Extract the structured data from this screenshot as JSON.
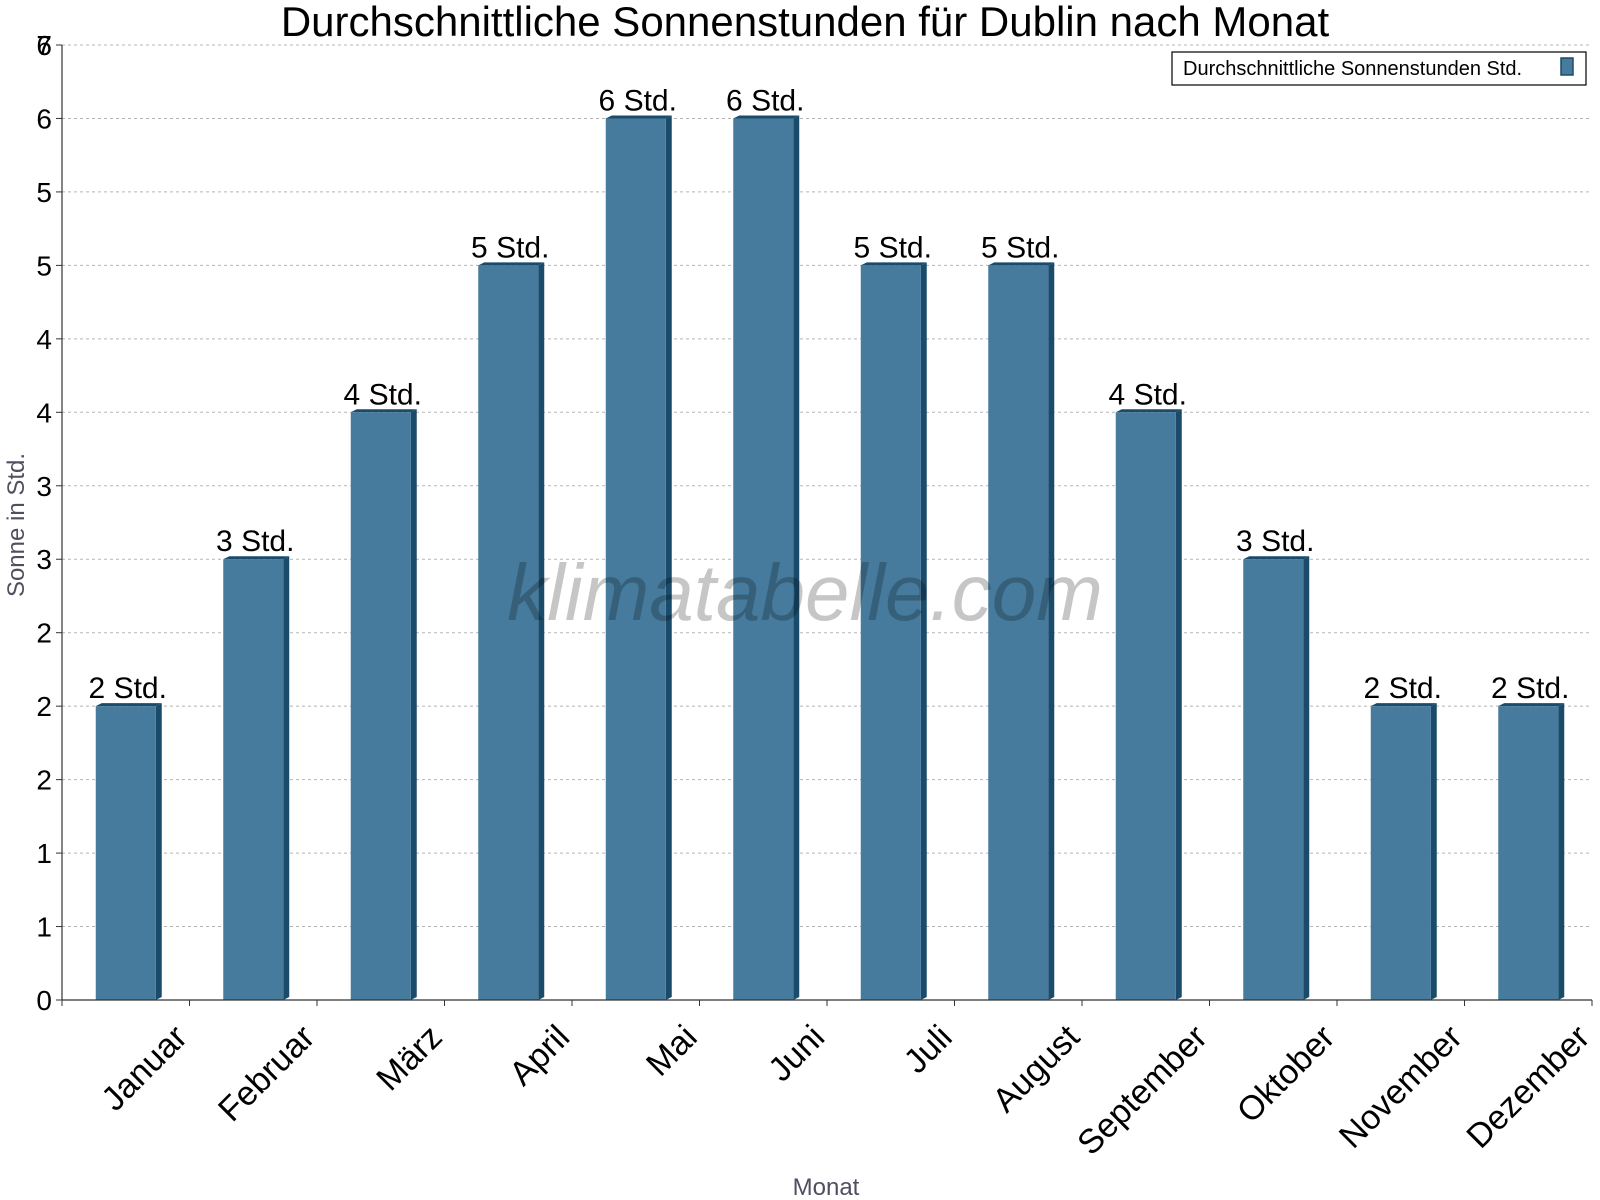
{
  "chart_data": {
    "type": "bar",
    "title": "Durchschnittliche Sonnenstunden für Dublin nach Monat",
    "xlabel": "Monat",
    "ylabel": "Sonne in Std.",
    "categories": [
      "Januar",
      "Februar",
      "März",
      "April",
      "Mai",
      "Juni",
      "Juli",
      "August",
      "September",
      "Oktober",
      "November",
      "Dezember"
    ],
    "series": [
      {
        "name": "Durchschnittliche Sonnenstunden Std.",
        "values": [
          2,
          3,
          4,
          5,
          6,
          6,
          5,
          5,
          4,
          3,
          2,
          2
        ],
        "data_labels": [
          "2 Std.",
          "3 Std.",
          "4 Std.",
          "5 Std.",
          "6 Std.",
          "6 Std.",
          "5 Std.",
          "5 Std.",
          "4 Std.",
          "3 Std.",
          "2 Std.",
          "2 Std."
        ]
      }
    ],
    "ylim": [
      0,
      6.5
    ],
    "ytick_values": [
      0,
      0.5,
      1,
      1.5,
      2,
      2.5,
      3,
      3.5,
      4,
      4.5,
      5,
      5.5,
      6,
      6.5
    ],
    "ytick_labels": [
      "0",
      "1",
      "1",
      "2",
      "2",
      "2",
      "3",
      "3",
      "4",
      "4",
      "5",
      "5",
      "6",
      "6"
    ],
    "ymax_label": "7",
    "grid": true,
    "legend_position": "top-right",
    "watermark": "klimatabelle.com",
    "colors": {
      "bar_front": "#467b9d",
      "bar_side": "#1b4b6b",
      "grid": "#b5b5b5",
      "axis": "#333333"
    }
  }
}
